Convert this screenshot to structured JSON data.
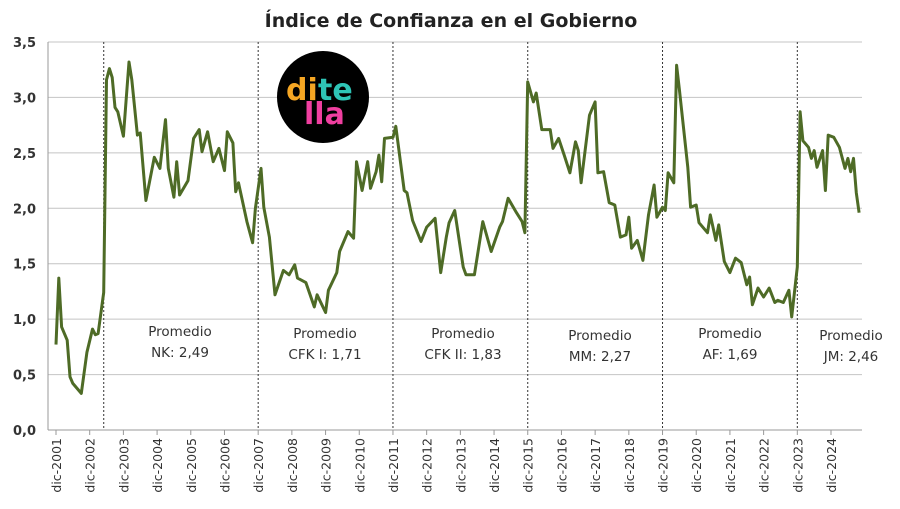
{
  "chart_data": {
    "type": "line",
    "title": "Índice de Confianza en el Gobierno",
    "xlabel": "",
    "ylabel": "",
    "ylim": [
      0,
      3.5
    ],
    "yticks": [
      "0,0",
      "0,5",
      "1,0",
      "1,5",
      "2,0",
      "2,5",
      "3,0",
      "3,5"
    ],
    "xticks": [
      "dic-2001",
      "dic-2002",
      "dic-2003",
      "dic-2004",
      "dic-2005",
      "dic-2006",
      "dic-2007",
      "dic-2008",
      "dic-2009",
      "dic-2010",
      "dic-2011",
      "dic-2012",
      "dic-2013",
      "dic-2014",
      "dic-2015",
      "dic-2016",
      "dic-2017",
      "dic-2018",
      "dic-2019",
      "dic-2020",
      "dic-2021",
      "dic-2022",
      "dic-2023",
      "dic-2024"
    ],
    "grid": true,
    "line_color": "#4e6b26",
    "period_dividers": [
      "2003-05",
      "2007-12",
      "2011-12",
      "2015-12",
      "2019-12",
      "2023-12"
    ],
    "annotations": [
      {
        "line1": "Promedio",
        "line2": "NK: 2,49"
      },
      {
        "line1": "Promedio",
        "line2": "CFK I: 1,71"
      },
      {
        "line1": "Promedio",
        "line2": "CFK II: 1,83"
      },
      {
        "line1": "Promedio",
        "line2": "MM: 2,27"
      },
      {
        "line1": "Promedio",
        "line2": "AF: 1,69"
      },
      {
        "line1": "Promedio",
        "line2": "JM: 2,46"
      }
    ],
    "series": [
      {
        "points": [
          [
            "2001-12",
            0.77
          ],
          [
            "2002-01",
            1.37
          ],
          [
            "2002-02",
            0.93
          ],
          [
            "2002-04",
            0.81
          ],
          [
            "2002-05",
            0.48
          ],
          [
            "2002-06",
            0.42
          ],
          [
            "2002-09",
            0.33
          ],
          [
            "2002-11",
            0.7
          ],
          [
            "2003-01",
            0.91
          ],
          [
            "2003-02",
            0.86
          ],
          [
            "2003-03",
            0.87
          ],
          [
            "2003-05",
            1.24
          ],
          [
            "2003-06",
            3.16
          ],
          [
            "2003-07",
            3.26
          ],
          [
            "2003-08",
            3.18
          ],
          [
            "2003-09",
            2.91
          ],
          [
            "2003-10",
            2.87
          ],
          [
            "2003-12",
            2.65
          ],
          [
            "2004-02",
            3.32
          ],
          [
            "2004-03",
            3.16
          ],
          [
            "2004-05",
            2.66
          ],
          [
            "2004-06",
            2.68
          ],
          [
            "2004-08",
            2.07
          ],
          [
            "2004-11",
            2.46
          ],
          [
            "2005-01",
            2.36
          ],
          [
            "2005-03",
            2.8
          ],
          [
            "2005-04",
            2.36
          ],
          [
            "2005-06",
            2.1
          ],
          [
            "2005-07",
            2.42
          ],
          [
            "2005-08",
            2.12
          ],
          [
            "2005-11",
            2.25
          ],
          [
            "2006-01",
            2.63
          ],
          [
            "2006-03",
            2.71
          ],
          [
            "2006-04",
            2.51
          ],
          [
            "2006-06",
            2.69
          ],
          [
            "2006-08",
            2.42
          ],
          [
            "2006-10",
            2.54
          ],
          [
            "2006-12",
            2.34
          ],
          [
            "2007-01",
            2.69
          ],
          [
            "2007-03",
            2.59
          ],
          [
            "2007-04",
            2.15
          ],
          [
            "2007-05",
            2.23
          ],
          [
            "2007-08",
            1.88
          ],
          [
            "2007-10",
            1.69
          ],
          [
            "2007-11",
            2.0
          ],
          [
            "2008-01",
            2.36
          ],
          [
            "2008-02",
            2.01
          ],
          [
            "2008-04",
            1.74
          ],
          [
            "2008-06",
            1.22
          ],
          [
            "2008-09",
            1.44
          ],
          [
            "2008-11",
            1.4
          ],
          [
            "2009-01",
            1.49
          ],
          [
            "2009-02",
            1.37
          ],
          [
            "2009-05",
            1.33
          ],
          [
            "2009-08",
            1.11
          ],
          [
            "2009-09",
            1.22
          ],
          [
            "2009-12",
            1.06
          ],
          [
            "2010-01",
            1.26
          ],
          [
            "2010-04",
            1.42
          ],
          [
            "2010-05",
            1.61
          ],
          [
            "2010-08",
            1.79
          ],
          [
            "2010-10",
            1.73
          ],
          [
            "2010-11",
            2.42
          ],
          [
            "2011-01",
            2.16
          ],
          [
            "2011-03",
            2.42
          ],
          [
            "2011-04",
            2.18
          ],
          [
            "2011-06",
            2.33
          ],
          [
            "2011-07",
            2.48
          ],
          [
            "2011-08",
            2.24
          ],
          [
            "2011-09",
            2.63
          ],
          [
            "2011-12",
            2.64
          ],
          [
            "2012-01",
            2.74
          ],
          [
            "2012-04",
            2.16
          ],
          [
            "2012-05",
            2.14
          ],
          [
            "2012-07",
            1.89
          ],
          [
            "2012-10",
            1.7
          ],
          [
            "2012-12",
            1.83
          ],
          [
            "2013-03",
            1.91
          ],
          [
            "2013-05",
            1.42
          ],
          [
            "2013-07",
            1.74
          ],
          [
            "2013-08",
            1.87
          ],
          [
            "2013-10",
            1.98
          ],
          [
            "2014-01",
            1.47
          ],
          [
            "2014-02",
            1.4
          ],
          [
            "2014-05",
            1.4
          ],
          [
            "2014-08",
            1.88
          ],
          [
            "2014-11",
            1.61
          ],
          [
            "2015-02",
            1.83
          ],
          [
            "2015-03",
            1.88
          ],
          [
            "2015-05",
            2.09
          ],
          [
            "2015-08",
            1.96
          ],
          [
            "2015-10",
            1.88
          ],
          [
            "2015-11",
            1.78
          ],
          [
            "2015-12",
            3.14
          ],
          [
            "2016-02",
            2.96
          ],
          [
            "2016-03",
            3.04
          ],
          [
            "2016-05",
            2.71
          ],
          [
            "2016-08",
            2.71
          ],
          [
            "2016-09",
            2.54
          ],
          [
            "2016-11",
            2.63
          ],
          [
            "2017-01",
            2.48
          ],
          [
            "2017-03",
            2.32
          ],
          [
            "2017-05",
            2.6
          ],
          [
            "2017-06",
            2.52
          ],
          [
            "2017-07",
            2.23
          ],
          [
            "2017-10",
            2.84
          ],
          [
            "2017-12",
            2.96
          ],
          [
            "2018-01",
            2.32
          ],
          [
            "2018-03",
            2.33
          ],
          [
            "2018-05",
            2.05
          ],
          [
            "2018-07",
            2.03
          ],
          [
            "2018-09",
            1.74
          ],
          [
            "2018-11",
            1.76
          ],
          [
            "2018-12",
            1.92
          ],
          [
            "2019-01",
            1.64
          ],
          [
            "2019-03",
            1.71
          ],
          [
            "2019-05",
            1.53
          ],
          [
            "2019-07",
            1.94
          ],
          [
            "2019-09",
            2.21
          ],
          [
            "2019-10",
            1.92
          ],
          [
            "2019-12",
            2.01
          ],
          [
            "2020-01",
            1.98
          ],
          [
            "2020-02",
            2.32
          ],
          [
            "2020-04",
            2.23
          ],
          [
            "2020-05",
            3.29
          ],
          [
            "2020-06",
            3.07
          ],
          [
            "2020-09",
            2.37
          ],
          [
            "2020-10",
            2.01
          ],
          [
            "2020-12",
            2.03
          ],
          [
            "2021-01",
            1.87
          ],
          [
            "2021-04",
            1.78
          ],
          [
            "2021-05",
            1.94
          ],
          [
            "2021-07",
            1.71
          ],
          [
            "2021-08",
            1.85
          ],
          [
            "2021-10",
            1.52
          ],
          [
            "2021-12",
            1.42
          ],
          [
            "2022-02",
            1.55
          ],
          [
            "2022-04",
            1.51
          ],
          [
            "2022-06",
            1.31
          ],
          [
            "2022-07",
            1.38
          ],
          [
            "2022-08",
            1.13
          ],
          [
            "2022-10",
            1.28
          ],
          [
            "2022-12",
            1.2
          ],
          [
            "2023-02",
            1.28
          ],
          [
            "2023-04",
            1.15
          ],
          [
            "2023-05",
            1.17
          ],
          [
            "2023-07",
            1.15
          ],
          [
            "2023-09",
            1.26
          ],
          [
            "2023-10",
            1.02
          ],
          [
            "2023-12",
            1.47
          ],
          [
            "2024-01",
            2.87
          ],
          [
            "2024-02",
            2.61
          ],
          [
            "2024-04",
            2.55
          ],
          [
            "2024-05",
            2.45
          ],
          [
            "2024-06",
            2.52
          ],
          [
            "2024-07",
            2.37
          ],
          [
            "2024-09",
            2.52
          ],
          [
            "2024-10",
            2.16
          ],
          [
            "2024-11",
            2.66
          ],
          [
            "2025-01",
            2.64
          ],
          [
            "2025-03",
            2.55
          ],
          [
            "2025-05",
            2.36
          ],
          [
            "2025-06",
            2.45
          ],
          [
            "2025-07",
            2.33
          ],
          [
            "2025-08",
            2.45
          ],
          [
            "2025-09",
            2.14
          ],
          [
            "2025-10",
            1.96
          ]
        ]
      }
    ]
  },
  "logo": {
    "part1": "di",
    "part2": "te",
    "part3": "lla",
    "colors": {
      "bg": "#000000",
      "di": "#f5a623",
      "te": "#2ec4b6",
      "lla": "#f03fa0"
    }
  }
}
